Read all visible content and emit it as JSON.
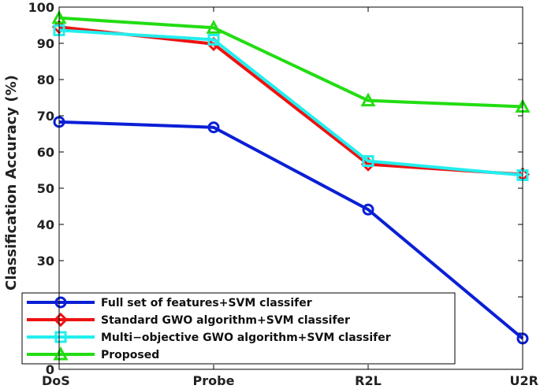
{
  "chart_data": {
    "type": "line",
    "title": "",
    "xlabel": "",
    "ylabel": "Classification Accuracy (%)",
    "categories": [
      "DoS",
      "Probe",
      "R2L",
      "U2R"
    ],
    "yticks": [
      0,
      10,
      20,
      30,
      40,
      50,
      60,
      70,
      80,
      90,
      100
    ],
    "ylim": [
      0,
      100
    ],
    "grid": false,
    "legend_position": "bottom-left",
    "series": [
      {
        "name": "Full set of features+SVM classifer",
        "color": "#0a1fd6",
        "marker": "circle",
        "values": [
          68.3,
          66.8,
          44.1,
          8.5
        ]
      },
      {
        "name": "Standard GWO algorithm+SVM classifer",
        "color": "#ee1111",
        "marker": "diamond",
        "values": [
          94.5,
          89.8,
          56.6,
          53.8
        ]
      },
      {
        "name": "Multi−objective GWO algorithm+SVM classifer",
        "color": "#22eeee",
        "marker": "square",
        "values": [
          93.6,
          91.0,
          57.5,
          53.6
        ]
      },
      {
        "name": "Proposed",
        "color": "#22dd11",
        "marker": "triangle",
        "values": [
          97.0,
          94.3,
          74.2,
          72.5
        ]
      }
    ]
  }
}
